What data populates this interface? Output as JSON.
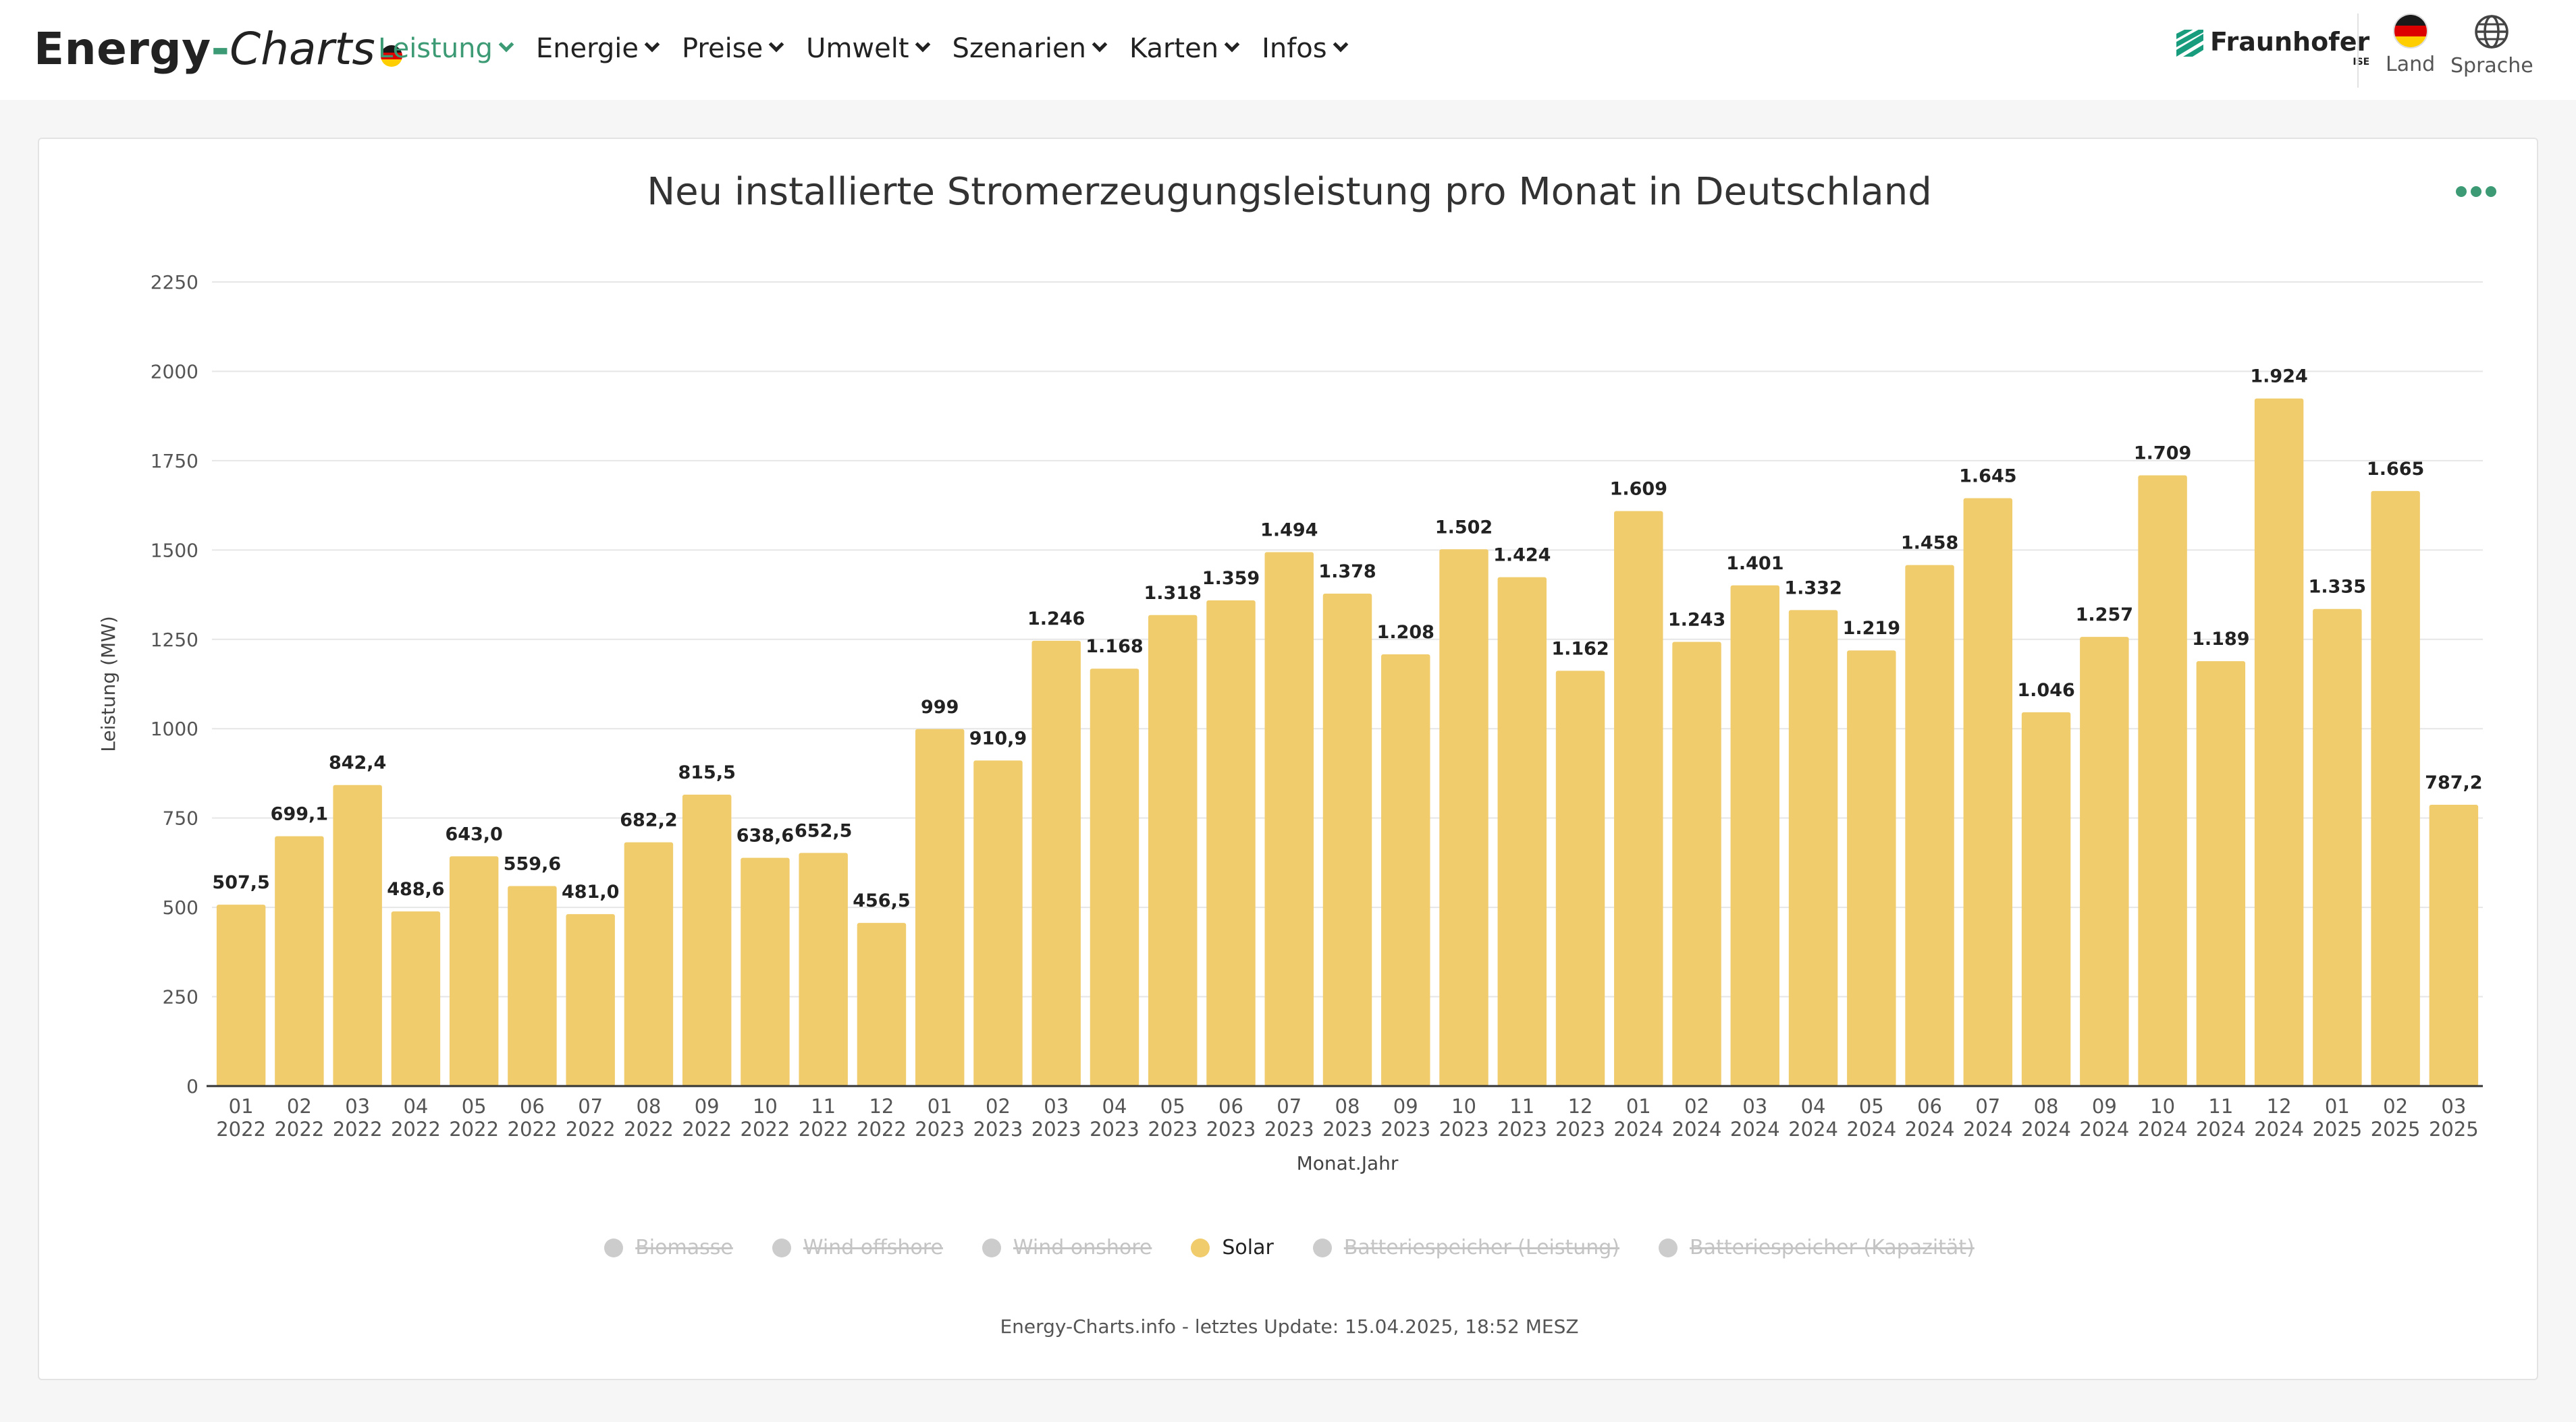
{
  "header": {
    "logo": {
      "part1": "Energy",
      "part2": "-",
      "part3": "Charts"
    },
    "nav": [
      {
        "label": "Leistung",
        "active": true
      },
      {
        "label": "Energie",
        "active": false
      },
      {
        "label": "Preise",
        "active": false
      },
      {
        "label": "Umwelt",
        "active": false
      },
      {
        "label": "Szenarien",
        "active": false
      },
      {
        "label": "Karten",
        "active": false
      },
      {
        "label": "Infos",
        "active": false
      }
    ],
    "partner": {
      "name": "Fraunhofer",
      "sub": "ISE"
    },
    "country_label": "Land",
    "language_label": "Sprache"
  },
  "colors": {
    "accent": "#3c9a74",
    "solar": "#f0cc6d",
    "inactive": "#cccccc"
  },
  "legend": [
    {
      "label": "Biomasse",
      "active": false
    },
    {
      "label": "Wind offshore",
      "active": false
    },
    {
      "label": "Wind onshore",
      "active": false
    },
    {
      "label": "Solar",
      "active": true
    },
    {
      "label": "Batteriespeicher (Leistung)",
      "active": false
    },
    {
      "label": "Batteriespeicher (Kapazität)",
      "active": false
    }
  ],
  "footer_note": "Energy-Charts.info - letztes Update: 15.04.2025, 18:52 MESZ",
  "chart_data": {
    "type": "bar",
    "title": "Neu installierte Stromerzeugungsleistung pro Monat in Deutschland",
    "xlabel": "Monat.Jahr",
    "ylabel": "Leistung (MW)",
    "ylim": [
      0,
      2250
    ],
    "yticks": [
      0,
      250,
      500,
      750,
      1000,
      1250,
      1500,
      1750,
      2000,
      2250
    ],
    "grid": true,
    "legend_position": "bottom",
    "categories": [
      [
        "01",
        "2022"
      ],
      [
        "02",
        "2022"
      ],
      [
        "03",
        "2022"
      ],
      [
        "04",
        "2022"
      ],
      [
        "05",
        "2022"
      ],
      [
        "06",
        "2022"
      ],
      [
        "07",
        "2022"
      ],
      [
        "08",
        "2022"
      ],
      [
        "09",
        "2022"
      ],
      [
        "10",
        "2022"
      ],
      [
        "11",
        "2022"
      ],
      [
        "12",
        "2022"
      ],
      [
        "01",
        "2023"
      ],
      [
        "02",
        "2023"
      ],
      [
        "03",
        "2023"
      ],
      [
        "04",
        "2023"
      ],
      [
        "05",
        "2023"
      ],
      [
        "06",
        "2023"
      ],
      [
        "07",
        "2023"
      ],
      [
        "08",
        "2023"
      ],
      [
        "09",
        "2023"
      ],
      [
        "10",
        "2023"
      ],
      [
        "11",
        "2023"
      ],
      [
        "12",
        "2023"
      ],
      [
        "01",
        "2024"
      ],
      [
        "02",
        "2024"
      ],
      [
        "03",
        "2024"
      ],
      [
        "04",
        "2024"
      ],
      [
        "05",
        "2024"
      ],
      [
        "06",
        "2024"
      ],
      [
        "07",
        "2024"
      ],
      [
        "08",
        "2024"
      ],
      [
        "09",
        "2024"
      ],
      [
        "10",
        "2024"
      ],
      [
        "11",
        "2024"
      ],
      [
        "12",
        "2024"
      ],
      [
        "01",
        "2025"
      ],
      [
        "02",
        "2025"
      ],
      [
        "03",
        "2025"
      ]
    ],
    "series": [
      {
        "name": "Solar",
        "values": [
          507.5,
          699.1,
          842.4,
          488.6,
          643.0,
          559.6,
          481.0,
          682.2,
          815.5,
          638.6,
          652.5,
          456.5,
          999,
          910.9,
          1246,
          1168,
          1318,
          1359,
          1494,
          1378,
          1208,
          1502,
          1424,
          1162,
          1609,
          1243,
          1401,
          1332,
          1219,
          1458,
          1645,
          1046,
          1257,
          1709,
          1189,
          1924,
          1335,
          1665,
          787.2
        ],
        "labels": [
          "507,5",
          "699,1",
          "842,4",
          "488,6",
          "643,0",
          "559,6",
          "481,0",
          "682,2",
          "815,5",
          "638,6",
          "652,5",
          "456,5",
          "999",
          "910,9",
          "1.246",
          "1.168",
          "1.318",
          "1.359",
          "1.494",
          "1.378",
          "1.208",
          "1.502",
          "1.424",
          "1.162",
          "1.609",
          "1.243",
          "1.401",
          "1.332",
          "1.219",
          "1.458",
          "1.645",
          "1.046",
          "1.257",
          "1.709",
          "1.189",
          "1.924",
          "1.335",
          "1.665",
          "787,2"
        ]
      }
    ]
  }
}
